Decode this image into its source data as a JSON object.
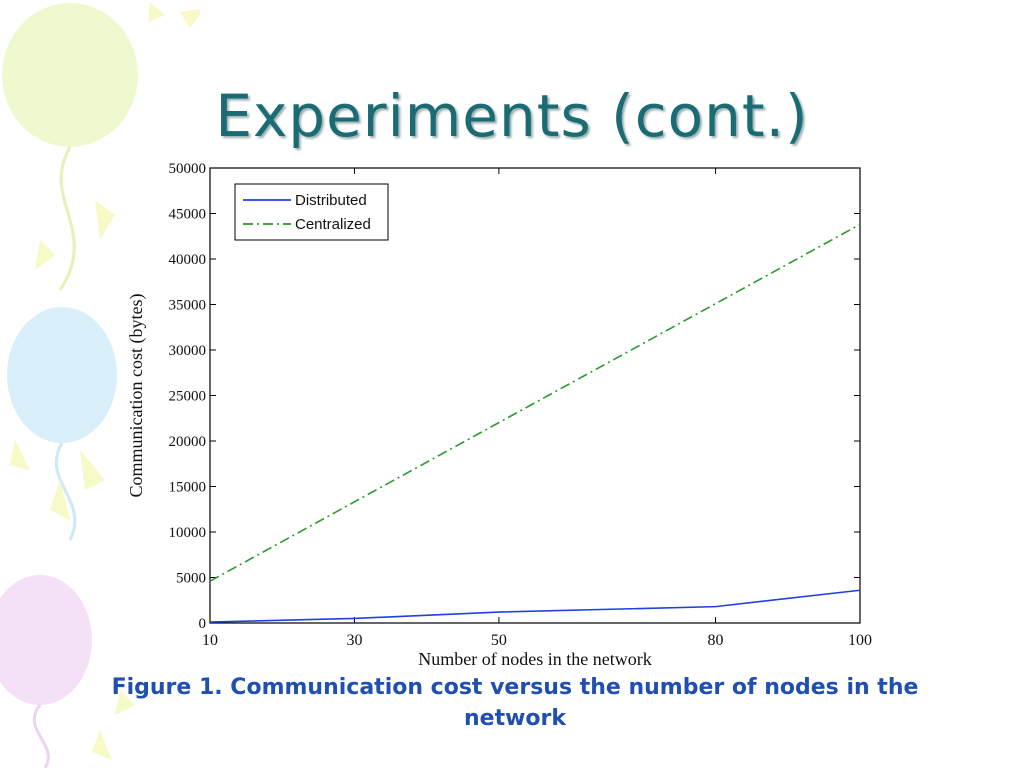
{
  "slide": {
    "title": "Experiments (cont.)",
    "caption": "Figure 1. Communication cost versus the number of nodes in the network"
  },
  "colors": {
    "title": "#1a6b73",
    "caption": "#1f4fb0",
    "distributed": "#2040e0",
    "centralized": "#2c9a2c"
  },
  "chart_data": {
    "type": "line",
    "xlabel": "Number of nodes in the network",
    "ylabel": "Communication cost (bytes)",
    "xlim": [
      10,
      100
    ],
    "ylim": [
      0,
      50000
    ],
    "x_ticks": [
      10,
      30,
      50,
      80,
      100
    ],
    "y_ticks": [
      0,
      5000,
      10000,
      15000,
      20000,
      25000,
      30000,
      35000,
      40000,
      45000,
      50000
    ],
    "legend_position": "top-left",
    "grid": false,
    "series": [
      {
        "name": "Distributed",
        "style": "solid",
        "color": "#2040e0",
        "x": [
          10,
          30,
          50,
          80,
          100
        ],
        "y": [
          100,
          500,
          1200,
          1800,
          3600
        ]
      },
      {
        "name": "Centralized",
        "style": "dash-dot",
        "color": "#2c9a2c",
        "x": [
          10,
          100
        ],
        "y": [
          4600,
          43800
        ]
      }
    ]
  }
}
